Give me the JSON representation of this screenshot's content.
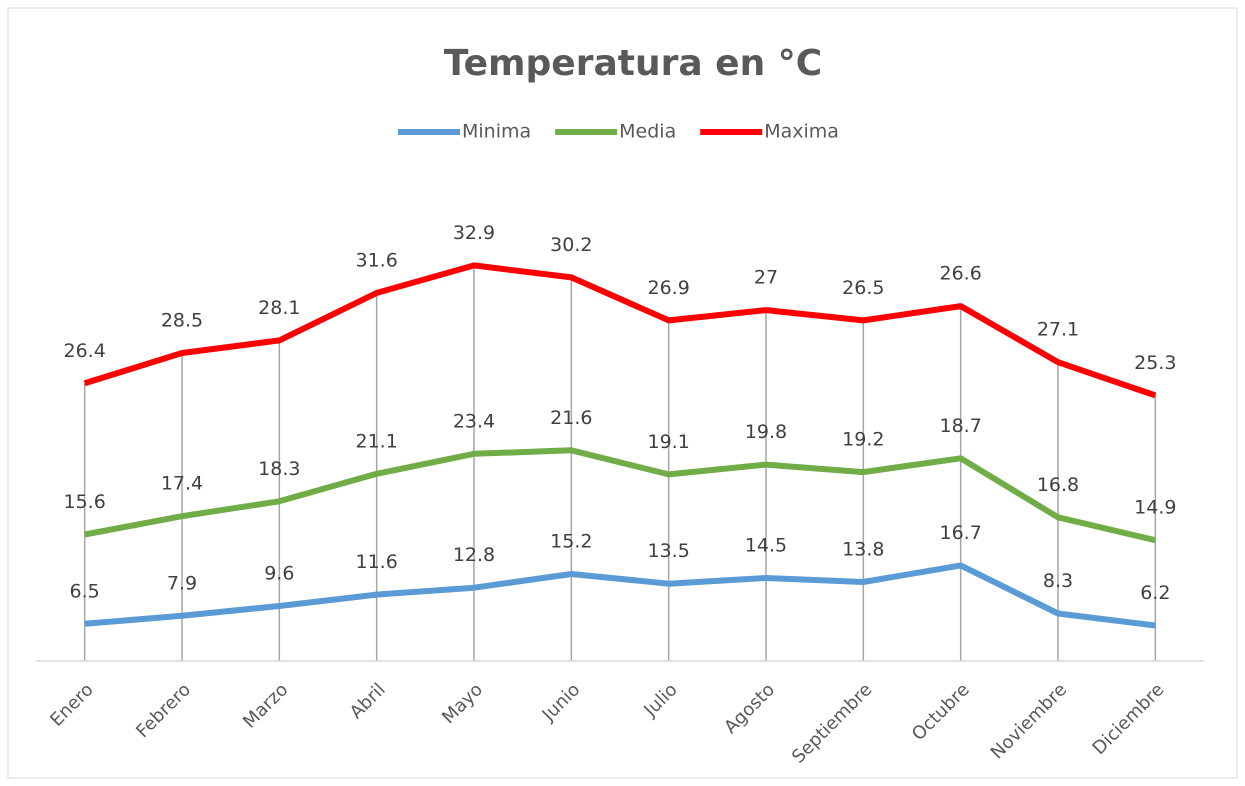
{
  "chart_data": {
    "type": "line",
    "stacked": true,
    "title": "Temperatura en °C",
    "categories": [
      "Enero",
      "Febrero",
      "Marzo",
      "Abril",
      "Mayo",
      "Junio",
      "Julio",
      "Agosto",
      "Septiembre",
      "Octubre",
      "Noviembre",
      "Diciembre"
    ],
    "series": [
      {
        "name": "Minima",
        "color": "#5b9bd5",
        "values": [
          6.5,
          7.9,
          9.6,
          11.6,
          12.8,
          15.2,
          13.5,
          14.5,
          13.8,
          16.7,
          8.3,
          6.2
        ]
      },
      {
        "name": "Media",
        "color": "#70ad47",
        "values": [
          15.6,
          17.4,
          18.3,
          21.1,
          23.4,
          21.6,
          19.1,
          19.8,
          19.2,
          18.7,
          16.8,
          14.9
        ]
      },
      {
        "name": "Maxima",
        "color": "#ff0000",
        "values": [
          26.4,
          28.5,
          28.1,
          31.6,
          32.9,
          30.2,
          26.9,
          27,
          26.5,
          26.6,
          27.1,
          25.3
        ]
      }
    ],
    "ylim": [
      0,
      80
    ],
    "legend": "top"
  }
}
